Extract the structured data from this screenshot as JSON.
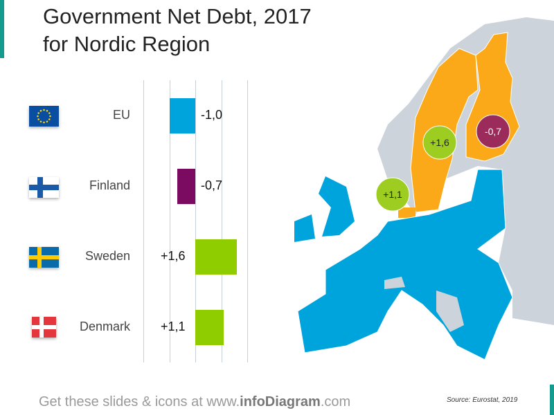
{
  "title_line1": "Government Net Debt, 2017",
  "title_line2": "for Nordic Region",
  "chart_data": {
    "type": "bar",
    "orientation": "horizontal",
    "categories": [
      "EU",
      "Finland",
      "Sweden",
      "Denmark"
    ],
    "values": [
      -1.0,
      -0.7,
      1.6,
      1.1
    ],
    "value_labels": [
      "-1,0",
      "-0,7",
      "+1,6",
      "+1,1"
    ],
    "colors": [
      "#00a4dd",
      "#7b0a61",
      "#8fcc00",
      "#8fcc00"
    ],
    "xlim": [
      -2,
      2
    ],
    "grid": true
  },
  "map": {
    "bubbles": [
      {
        "country": "Sweden",
        "label": "+1,6",
        "color": "#9ccd20"
      },
      {
        "country": "Finland",
        "label": "-0,7",
        "color": "#9b2b5a"
      },
      {
        "country": "Denmark",
        "label": "+1,1",
        "color": "#9ccd20"
      }
    ],
    "colors": {
      "eu": "#00a4dd",
      "nordic": "#fba919",
      "other": "#cdd3da"
    }
  },
  "footer": {
    "pre": "Get these slides & icons at www.",
    "brand": "infoDiagram",
    "post": ".com"
  },
  "source": "Source: Eurostat, 2019"
}
